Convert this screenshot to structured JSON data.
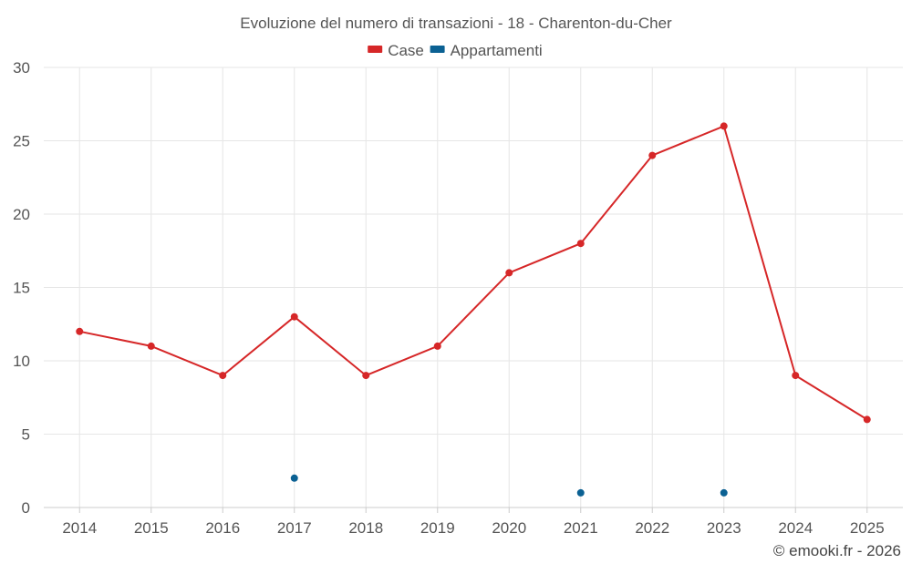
{
  "chart_data": {
    "type": "line",
    "title": "Evoluzione del numero di transazioni - 18 - Charenton-du-Cher",
    "categories": [
      "2014",
      "2015",
      "2016",
      "2017",
      "2018",
      "2019",
      "2020",
      "2021",
      "2022",
      "2023",
      "2024",
      "2025"
    ],
    "series": [
      {
        "name": "Case",
        "color": "#d62728",
        "values": [
          12,
          11,
          9,
          13,
          9,
          11,
          16,
          18,
          24,
          26,
          9,
          6
        ]
      },
      {
        "name": "Appartamenti",
        "color": "#0b6193",
        "values": [
          null,
          null,
          null,
          2,
          null,
          null,
          null,
          1,
          null,
          1,
          null,
          null
        ]
      }
    ],
    "ylim": [
      0,
      30
    ],
    "yticks": [
      0,
      5,
      10,
      15,
      20,
      25,
      30
    ],
    "xlabel": "",
    "ylabel": "",
    "grid": true,
    "legend_position": "top-center"
  },
  "credit": "© emooki.fr - 2026",
  "colors": {
    "grid": "#e6e6e6",
    "axis": "#cccccc",
    "text": "#555555"
  }
}
